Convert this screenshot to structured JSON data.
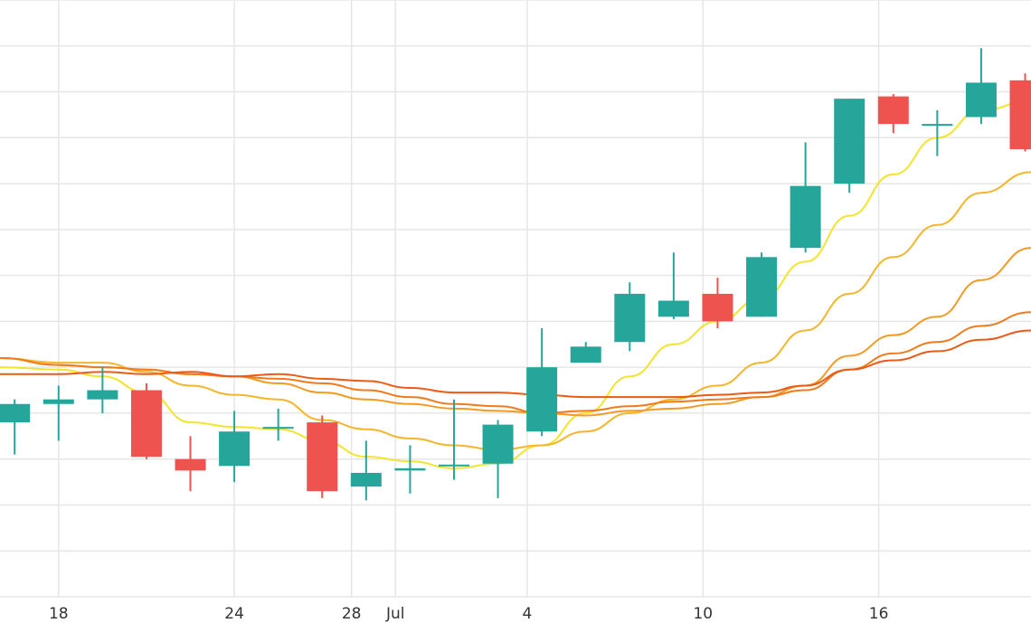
{
  "chart_data": {
    "type": "candlestick",
    "title": "",
    "xlabel": "",
    "ylabel": "",
    "grid": true,
    "legend": "none",
    "x_ticks": [
      {
        "day": 18,
        "label": "18"
      },
      {
        "day": 24,
        "label": "24"
      },
      {
        "day": 28,
        "label": "28"
      },
      {
        "day": 29.5,
        "label": "Jul"
      },
      {
        "day": 34,
        "label": "4"
      },
      {
        "day": 40,
        "label": "10"
      },
      {
        "day": 46,
        "label": "16"
      }
    ],
    "xlim": [
      16,
      51.2
    ],
    "ylim": [
      0,
      13
    ],
    "y_grid_step": 1,
    "candles": [
      {
        "day": 16.5,
        "open": 3.8,
        "high": 4.3,
        "low": 3.1,
        "close": 4.2
      },
      {
        "day": 18,
        "open": 4.2,
        "high": 4.6,
        "low": 3.4,
        "close": 4.3
      },
      {
        "day": 19.5,
        "open": 4.3,
        "high": 5.0,
        "low": 4.0,
        "close": 4.5
      },
      {
        "day": 21,
        "open": 4.5,
        "high": 4.65,
        "low": 3.0,
        "close": 3.05
      },
      {
        "day": 22.5,
        "open": 3.0,
        "high": 3.5,
        "low": 2.3,
        "close": 2.75
      },
      {
        "day": 24,
        "open": 2.85,
        "high": 4.05,
        "low": 2.5,
        "close": 3.6
      },
      {
        "day": 25.5,
        "open": 3.7,
        "high": 4.1,
        "low": 3.4,
        "close": 3.7
      },
      {
        "day": 27,
        "open": 3.8,
        "high": 3.95,
        "low": 2.15,
        "close": 2.3
      },
      {
        "day": 28.5,
        "open": 2.4,
        "high": 3.4,
        "low": 2.1,
        "close": 2.7
      },
      {
        "day": 30,
        "open": 2.75,
        "high": 3.3,
        "low": 2.25,
        "close": 2.8
      },
      {
        "day": 31.5,
        "open": 2.85,
        "high": 4.3,
        "low": 2.55,
        "close": 2.88
      },
      {
        "day": 33,
        "open": 2.9,
        "high": 3.85,
        "low": 2.15,
        "close": 3.75
      },
      {
        "day": 34.5,
        "open": 3.6,
        "high": 5.85,
        "low": 3.5,
        "close": 5.0
      },
      {
        "day": 36,
        "open": 5.1,
        "high": 5.55,
        "low": 5.1,
        "close": 5.45
      },
      {
        "day": 37.5,
        "open": 5.55,
        "high": 6.85,
        "low": 5.35,
        "close": 6.6
      },
      {
        "day": 39,
        "open": 6.1,
        "high": 7.5,
        "low": 6.05,
        "close": 6.45
      },
      {
        "day": 40.5,
        "open": 6.6,
        "high": 6.95,
        "low": 5.85,
        "close": 6.0
      },
      {
        "day": 42,
        "open": 6.1,
        "high": 7.5,
        "low": 6.1,
        "close": 7.4
      },
      {
        "day": 43.5,
        "open": 7.6,
        "high": 9.9,
        "low": 7.5,
        "close": 8.95
      },
      {
        "day": 45,
        "open": 9.0,
        "high": 10.85,
        "low": 8.8,
        "close": 10.85
      },
      {
        "day": 46.5,
        "open": 10.9,
        "high": 10.95,
        "low": 10.1,
        "close": 10.3
      },
      {
        "day": 48,
        "open": 10.3,
        "high": 10.6,
        "low": 9.6,
        "close": 10.3
      },
      {
        "day": 49.5,
        "open": 10.45,
        "high": 11.95,
        "low": 10.3,
        "close": 11.2
      },
      {
        "day": 51,
        "open": 11.25,
        "high": 11.4,
        "low": 9.7,
        "close": 9.75
      }
    ],
    "series": [
      {
        "color": "#f4e42a",
        "x": [
          16,
          18,
          19.5,
          21,
          22.5,
          24,
          25.5,
          27,
          28.5,
          30,
          31.5,
          33,
          34.5,
          36,
          37.5,
          39,
          40.5,
          42,
          43.5,
          45,
          46.5,
          48,
          49.5,
          51.2
        ],
        "y": [
          5.0,
          4.95,
          4.8,
          4.45,
          3.8,
          3.7,
          3.65,
          3.4,
          3.05,
          2.95,
          2.8,
          2.9,
          3.3,
          4.0,
          4.8,
          5.5,
          6.0,
          6.5,
          7.3,
          8.3,
          9.2,
          10.0,
          10.6,
          10.8
        ]
      },
      {
        "color": "#f6b52a",
        "x": [
          16,
          18,
          19.5,
          21,
          22.5,
          24,
          25.5,
          27,
          28.5,
          30,
          31.5,
          33,
          34.5,
          36,
          37.5,
          39,
          40.5,
          42,
          43.5,
          45,
          46.5,
          48,
          49.5,
          51.2
        ],
        "y": [
          5.2,
          5.1,
          5.1,
          4.9,
          4.6,
          4.4,
          4.3,
          3.85,
          3.65,
          3.45,
          3.3,
          3.2,
          3.3,
          3.6,
          4.0,
          4.3,
          4.6,
          5.1,
          5.8,
          6.6,
          7.4,
          8.1,
          8.8,
          9.25
        ]
      },
      {
        "color": "#f39a22",
        "x": [
          16,
          18,
          19.5,
          21,
          22.5,
          24,
          25.5,
          27,
          28.5,
          30,
          31.5,
          33,
          34.5,
          36,
          37.5,
          39,
          40.5,
          42,
          43.5,
          45,
          46.5,
          48,
          49.5,
          51.2
        ],
        "y": [
          5.2,
          5.05,
          5.0,
          4.95,
          4.85,
          4.8,
          4.65,
          4.45,
          4.3,
          4.2,
          4.1,
          4.05,
          4.0,
          3.95,
          4.05,
          4.1,
          4.2,
          4.35,
          4.6,
          5.25,
          5.7,
          6.1,
          6.9,
          7.6
        ]
      },
      {
        "color": "#f07a1c",
        "x": [
          16,
          18,
          19.5,
          21,
          22.5,
          24,
          25.5,
          27,
          28.5,
          30,
          31.5,
          33,
          34.5,
          36,
          37.5,
          39,
          40.5,
          42,
          43.5,
          45,
          46.5,
          48,
          49.5,
          51.2
        ],
        "y": [
          5.2,
          5.05,
          5.0,
          4.95,
          4.85,
          4.8,
          4.75,
          4.65,
          4.5,
          4.35,
          4.2,
          4.15,
          4.0,
          4.05,
          4.15,
          4.25,
          4.3,
          4.35,
          4.5,
          4.95,
          5.3,
          5.55,
          5.9,
          6.2
        ]
      },
      {
        "color": "#ec5a16",
        "x": [
          16,
          18,
          19.5,
          21,
          22.5,
          24,
          25.5,
          27,
          28.5,
          30,
          31.5,
          33,
          34.5,
          36,
          37.5,
          39,
          40.5,
          42,
          43.5,
          45,
          46.5,
          48,
          49.5,
          51.2
        ],
        "y": [
          4.85,
          4.85,
          4.9,
          4.85,
          4.9,
          4.8,
          4.85,
          4.75,
          4.7,
          4.55,
          4.45,
          4.45,
          4.4,
          4.35,
          4.35,
          4.35,
          4.4,
          4.45,
          4.6,
          4.95,
          5.15,
          5.35,
          5.6,
          5.8
        ]
      }
    ],
    "up_color": "#26a69a",
    "down_color": "#ef5350",
    "grid_color": "#e6e6e6"
  }
}
